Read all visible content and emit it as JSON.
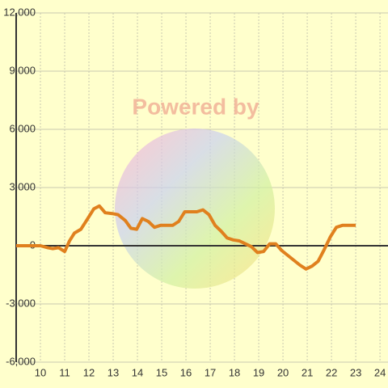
{
  "chart_data": {
    "type": "line",
    "watermark": "Powered by",
    "x": [
      9.0,
      10.0,
      10.3,
      10.5,
      10.75,
      11.0,
      11.2,
      11.4,
      11.67,
      11.9,
      12.2,
      12.43,
      12.67,
      13.0,
      13.2,
      13.5,
      13.73,
      13.97,
      14.2,
      14.45,
      14.7,
      14.95,
      15.2,
      15.45,
      15.7,
      15.95,
      16.2,
      16.45,
      16.7,
      16.95,
      17.2,
      17.45,
      17.7,
      17.95,
      18.2,
      18.45,
      18.7,
      18.95,
      19.2,
      19.45,
      19.7,
      19.95,
      20.2,
      20.45,
      20.7,
      20.95,
      21.2,
      21.45,
      21.7,
      21.95,
      22.2,
      22.45,
      22.7,
      23.0
    ],
    "series": [
      {
        "color": "#e0801e",
        "values": [
          0,
          0,
          -100,
          -150,
          -100,
          -300,
          250,
          650,
          850,
          1300,
          1900,
          2050,
          1700,
          1650,
          1600,
          1300,
          900,
          850,
          1400,
          1250,
          950,
          1050,
          1050,
          1050,
          1250,
          1750,
          1750,
          1750,
          1850,
          1600,
          1050,
          750,
          400,
          300,
          250,
          100,
          -50,
          -350,
          -300,
          100,
          100,
          -250,
          -500,
          -750,
          -1000,
          -1200,
          -1050,
          -800,
          -200,
          450,
          950,
          1050,
          1050,
          1050
        ]
      }
    ],
    "xlim": [
      9,
      24.33
    ],
    "xticks": [
      10,
      11,
      12,
      13,
      14,
      15,
      16,
      17,
      18,
      19,
      20,
      21,
      22,
      23,
      24
    ],
    "ylim": [
      -6000,
      12000
    ],
    "yticks": [
      {
        "value": -6000,
        "label": "-6,000"
      },
      {
        "value": -3000,
        "label": "-3,000"
      },
      0,
      {
        "value": 3000,
        "label": "3,000"
      },
      {
        "value": 6000,
        "label": "6,000"
      },
      {
        "value": 9000,
        "label": "9,000"
      },
      {
        "value": 12000,
        "label": "12,000"
      }
    ],
    "grid": true
  }
}
